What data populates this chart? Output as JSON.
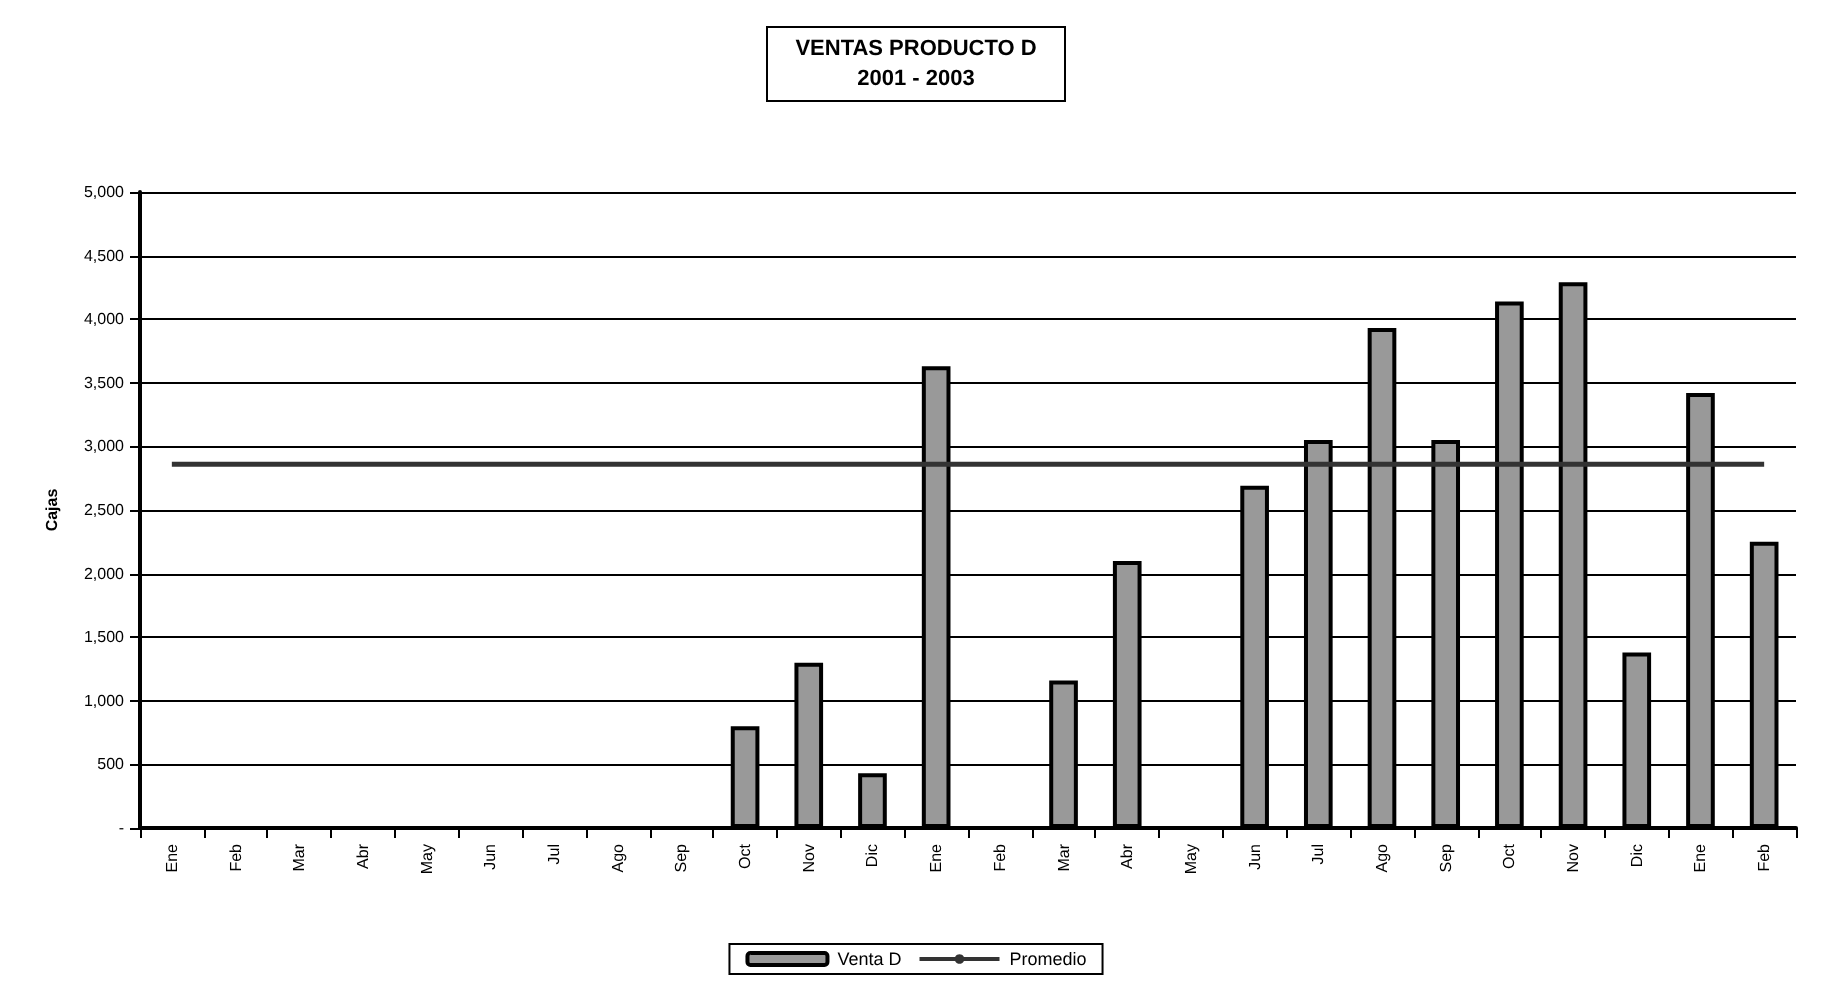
{
  "chart_data": {
    "type": "bar",
    "title": "VENTAS PRODUCTO D",
    "subtitle": "2001 - 2003",
    "ylabel": "Cajas",
    "categories": [
      "Ene",
      "Feb",
      "Mar",
      "Abr",
      "May",
      "Jun",
      "Jul",
      "Ago",
      "Sep",
      "Oct",
      "Nov",
      "Dic",
      "Ene",
      "Feb",
      "Mar",
      "Abr",
      "May",
      "Jun",
      "Jul",
      "Ago",
      "Sep",
      "Oct",
      "Nov",
      "Dic",
      "Ene",
      "Feb"
    ],
    "series": [
      {
        "name": "Venta D",
        "color": "#999999",
        "values": [
          null,
          null,
          null,
          null,
          null,
          null,
          null,
          null,
          null,
          800,
          1300,
          430,
          3630,
          null,
          1160,
          2100,
          null,
          2690,
          3050,
          3930,
          3050,
          4140,
          4290,
          1380,
          3420,
          2250
        ]
      },
      {
        "name": "Promedio",
        "type": "line",
        "color": "#333333",
        "values": [
          2860,
          2860,
          2860,
          2860,
          2860,
          2860,
          2860,
          2860,
          2860,
          2860,
          2860,
          2860,
          2860,
          2860,
          2860,
          2860,
          2860,
          2860,
          2860,
          2860,
          2860,
          2860,
          2860,
          2860,
          2860,
          2860
        ]
      }
    ],
    "ylim": [
      0,
      5000
    ],
    "yticks": [
      {
        "value": 0,
        "label": "-"
      },
      500,
      {
        "value": 1000,
        "label": "1,000"
      },
      {
        "value": 1500,
        "label": "1,500"
      },
      {
        "value": 2000,
        "label": "2,000"
      },
      {
        "value": 2500,
        "label": "2,500"
      },
      {
        "value": 3000,
        "label": "3,000"
      },
      {
        "value": 3500,
        "label": "3,500"
      },
      {
        "value": 4000,
        "label": "4,000"
      },
      {
        "value": 4500,
        "label": "4,500"
      },
      {
        "value": 5000,
        "label": "5,000"
      }
    ],
    "grid": "y",
    "legend": "bottom",
    "marker": "none",
    "line_style": "solid"
  }
}
